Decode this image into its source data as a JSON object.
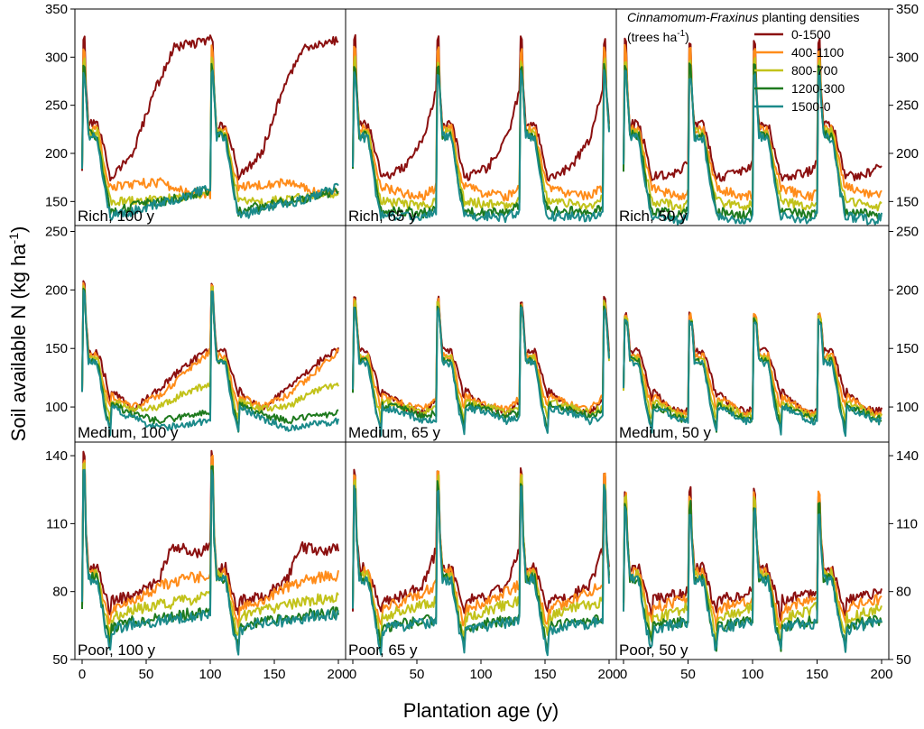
{
  "chart_data": {
    "type": "line",
    "xlabel": "Plantation age (y)",
    "ylabel_main": "Soil available N (kg ha",
    "ylabel_sup": "-1",
    "ylabel_close": ")",
    "xlim": [
      0,
      200
    ],
    "xticks": [
      0,
      50,
      100,
      150,
      200
    ],
    "rows": [
      {
        "site": "Rich",
        "ylim": [
          125,
          350
        ],
        "yticks": [
          150,
          200,
          250,
          300,
          350
        ]
      },
      {
        "site": "Medium",
        "ylim": [
          70,
          255
        ],
        "yticks": [
          100,
          150,
          200,
          250
        ]
      },
      {
        "site": "Poor",
        "ylim": [
          50,
          146
        ],
        "yticks": [
          50,
          80,
          110,
          140
        ]
      }
    ],
    "columns": [
      {
        "rotation": 100,
        "harvests": [
          100
        ]
      },
      {
        "rotation": 65,
        "harvests": [
          65,
          130
        ]
      },
      {
        "rotation": 50,
        "harvests": [
          50,
          100,
          150
        ]
      }
    ],
    "panel_labels": [
      [
        "Rich, 100 y",
        "Rich, 65 y",
        "Rich, 50 y"
      ],
      [
        "Medium, 100 y",
        "Medium, 65 y",
        "Medium, 50 y"
      ],
      [
        "Poor, 100 y",
        "Poor, 65 y",
        "Poor, 50 y"
      ]
    ],
    "legend": {
      "title_italic": "Cinnamomum-Fraxinus",
      "title_rest": " planting densities",
      "subtitle_main": "(trees ha",
      "subtitle_sup": "-1",
      "subtitle_close": ")",
      "position": "top-right"
    },
    "series": [
      {
        "name": "0-1500",
        "color": "#8B1010"
      },
      {
        "name": "400-1100",
        "color": "#FF8C1A"
      },
      {
        "name": "800-700",
        "color": "#C2C21A"
      },
      {
        "name": "1200-300",
        "color": "#1E7A1E"
      },
      {
        "name": "1500-0",
        "color": "#1B8A8A"
      }
    ],
    "profiles": {
      "start": [
        [
          [
            0,
            185
          ],
          [
            2,
            285
          ],
          [
            5,
            230
          ],
          [
            12,
            230
          ],
          [
            18,
            200
          ],
          [
            22,
            175
          ]
        ],
        [
          [
            0,
            185
          ],
          [
            2,
            285
          ],
          [
            5,
            225
          ],
          [
            12,
            225
          ],
          [
            18,
            185
          ],
          [
            22,
            165
          ]
        ],
        [
          [
            0,
            185
          ],
          [
            2,
            285
          ],
          [
            5,
            222
          ],
          [
            12,
            222
          ],
          [
            18,
            175
          ],
          [
            22,
            150
          ]
        ],
        [
          [
            0,
            185
          ],
          [
            2,
            285
          ],
          [
            5,
            220
          ],
          [
            12,
            218
          ],
          [
            18,
            165
          ],
          [
            22,
            140
          ]
        ],
        [
          [
            0,
            185
          ],
          [
            2,
            285
          ],
          [
            5,
            218
          ],
          [
            12,
            215
          ],
          [
            18,
            160
          ],
          [
            22,
            135
          ]
        ]
      ],
      "spike": [
        318,
        310,
        300,
        295,
        290
      ],
      "rich": {
        "r100": [
          [
            [
              22,
              175
            ],
            [
              40,
              200
            ],
            [
              55,
              260
            ],
            [
              72,
              310
            ],
            [
              100,
              318
            ]
          ],
          [
            [
              22,
              165
            ],
            [
              40,
              168
            ],
            [
              60,
              170
            ],
            [
              80,
              160
            ],
            [
              100,
              158
            ]
          ],
          [
            [
              22,
              150
            ],
            [
              40,
              150
            ],
            [
              60,
              152
            ],
            [
              80,
              155
            ],
            [
              100,
              160
            ]
          ],
          [
            [
              22,
              140
            ],
            [
              40,
              145
            ],
            [
              60,
              150
            ],
            [
              80,
              155
            ],
            [
              100,
              162
            ]
          ],
          [
            [
              22,
              135
            ],
            [
              40,
              140
            ],
            [
              60,
              148
            ],
            [
              80,
              155
            ],
            [
              100,
              165
            ]
          ]
        ],
        "r65": [
          [
            [
              22,
              175
            ],
            [
              40,
              185
            ],
            [
              55,
              215
            ],
            [
              65,
              265
            ]
          ],
          [
            [
              22,
              165
            ],
            [
              40,
              158
            ],
            [
              55,
              155
            ],
            [
              65,
              165
            ]
          ],
          [
            [
              22,
              150
            ],
            [
              40,
              148
            ],
            [
              55,
              145
            ],
            [
              65,
              152
            ]
          ],
          [
            [
              22,
              140
            ],
            [
              40,
              140
            ],
            [
              55,
              138
            ],
            [
              65,
              145
            ]
          ],
          [
            [
              22,
              135
            ],
            [
              40,
              135
            ],
            [
              55,
              133
            ],
            [
              65,
              140
            ]
          ]
        ],
        "r50": [
          [
            [
              22,
              175
            ],
            [
              35,
              178
            ],
            [
              45,
              182
            ],
            [
              50,
              190
            ]
          ],
          [
            [
              22,
              165
            ],
            [
              35,
              158
            ],
            [
              45,
              155
            ],
            [
              50,
              158
            ]
          ],
          [
            [
              22,
              150
            ],
            [
              35,
              147
            ],
            [
              45,
              143
            ],
            [
              50,
              148
            ]
          ],
          [
            [
              22,
              140
            ],
            [
              35,
              138
            ],
            [
              45,
              135
            ],
            [
              50,
              140
            ]
          ],
          [
            [
              22,
              135
            ],
            [
              35,
              132
            ],
            [
              45,
              130
            ],
            [
              50,
              135
            ]
          ]
        ]
      },
      "medium": {
        "r100": [
          [
            [
              22,
              115
            ],
            [
              40,
              98
            ],
            [
              60,
              115
            ],
            [
              80,
              135
            ],
            [
              100,
              150
            ]
          ],
          [
            [
              22,
              110
            ],
            [
              40,
              100
            ],
            [
              60,
              110
            ],
            [
              80,
              128
            ],
            [
              100,
              148
            ]
          ],
          [
            [
              22,
              105
            ],
            [
              40,
              98
            ],
            [
              60,
              100
            ],
            [
              80,
              112
            ],
            [
              100,
              120
            ]
          ],
          [
            [
              22,
              102
            ],
            [
              40,
              94
            ],
            [
              60,
              88
            ],
            [
              80,
              92
            ],
            [
              100,
              95
            ]
          ],
          [
            [
              22,
              100
            ],
            [
              40,
              90
            ],
            [
              60,
              82
            ],
            [
              80,
              85
            ],
            [
              100,
              88
            ]
          ]
        ],
        "r65": [
          [
            [
              22,
              115
            ],
            [
              40,
              100
            ],
            [
              55,
              95
            ],
            [
              65,
              105
            ]
          ],
          [
            [
              22,
              110
            ],
            [
              40,
              102
            ],
            [
              55,
              98
            ],
            [
              65,
              108
            ]
          ],
          [
            [
              22,
              105
            ],
            [
              40,
              100
            ],
            [
              55,
              95
            ],
            [
              65,
              100
            ]
          ],
          [
            [
              22,
              102
            ],
            [
              40,
              98
            ],
            [
              55,
              92
            ],
            [
              65,
              95
            ]
          ],
          [
            [
              22,
              100
            ],
            [
              40,
              95
            ],
            [
              55,
              88
            ],
            [
              65,
              90
            ]
          ]
        ],
        "r50": [
          [
            [
              22,
              115
            ],
            [
              35,
              100
            ],
            [
              45,
              96
            ],
            [
              50,
              98
            ]
          ],
          [
            [
              22,
              110
            ],
            [
              35,
              100
            ],
            [
              45,
              94
            ],
            [
              50,
              95
            ]
          ],
          [
            [
              22,
              105
            ],
            [
              35,
              98
            ],
            [
              45,
              92
            ],
            [
              50,
              93
            ]
          ],
          [
            [
              22,
              102
            ],
            [
              35,
              96
            ],
            [
              45,
              90
            ],
            [
              50,
              90
            ]
          ],
          [
            [
              22,
              100
            ],
            [
              35,
              94
            ],
            [
              45,
              88
            ],
            [
              50,
              88
            ]
          ]
        ]
      },
      "poor": {
        "r100": [
          [
            [
              22,
              76
            ],
            [
              40,
              78
            ],
            [
              60,
              85
            ],
            [
              70,
              100
            ],
            [
              90,
              97
            ],
            [
              100,
              100
            ]
          ],
          [
            [
              22,
              72
            ],
            [
              40,
              76
            ],
            [
              60,
              82
            ],
            [
              80,
              86
            ],
            [
              100,
              87
            ]
          ],
          [
            [
              22,
              68
            ],
            [
              40,
              72
            ],
            [
              60,
              74
            ],
            [
              80,
              76
            ],
            [
              100,
              78
            ]
          ],
          [
            [
              22,
              64
            ],
            [
              40,
              67
            ],
            [
              60,
              68
            ],
            [
              80,
              70
            ],
            [
              100,
              71
            ]
          ],
          [
            [
              22,
              63
            ],
            [
              40,
              66
            ],
            [
              60,
              67
            ],
            [
              80,
              69
            ],
            [
              100,
              70
            ]
          ]
        ],
        "r65": [
          [
            [
              22,
              76
            ],
            [
              40,
              78
            ],
            [
              55,
              83
            ],
            [
              65,
              98
            ]
          ],
          [
            [
              22,
              72
            ],
            [
              40,
              76
            ],
            [
              55,
              80
            ],
            [
              65,
              83
            ]
          ],
          [
            [
              22,
              68
            ],
            [
              40,
              72
            ],
            [
              55,
              74
            ],
            [
              65,
              76
            ]
          ],
          [
            [
              22,
              64
            ],
            [
              40,
              66
            ],
            [
              55,
              67
            ],
            [
              65,
              68
            ]
          ],
          [
            [
              22,
              63
            ],
            [
              40,
              65
            ],
            [
              55,
              66
            ],
            [
              65,
              67
            ]
          ]
        ],
        "r50": [
          [
            [
              22,
              76
            ],
            [
              35,
              78
            ],
            [
              45,
              79
            ],
            [
              50,
              80
            ]
          ],
          [
            [
              22,
              72
            ],
            [
              35,
              75
            ],
            [
              45,
              76
            ],
            [
              50,
              77
            ]
          ],
          [
            [
              22,
              68
            ],
            [
              35,
              70
            ],
            [
              45,
              72
            ],
            [
              50,
              73
            ]
          ],
          [
            [
              22,
              64
            ],
            [
              35,
              66
            ],
            [
              45,
              67
            ],
            [
              50,
              67
            ]
          ],
          [
            [
              22,
              63
            ],
            [
              35,
              65
            ],
            [
              45,
              66
            ],
            [
              50,
              66
            ]
          ]
        ]
      },
      "poor_spike": {
        "r100": 140,
        "r65": 133,
        "r50": 124
      }
    }
  }
}
